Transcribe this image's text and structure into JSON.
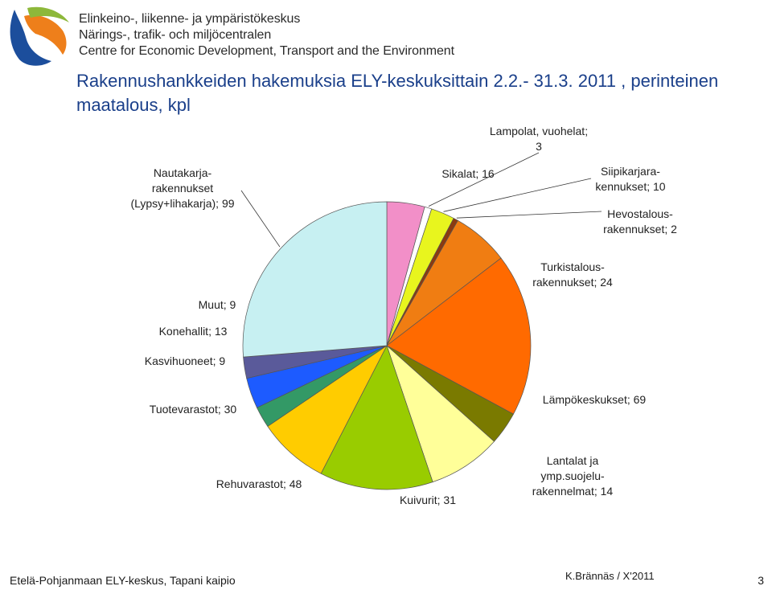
{
  "header": {
    "org_lines": [
      "Elinkeino-, liikenne- ja ympäristökeskus",
      "Närings-, trafik- och miljöcentralen",
      "Centre for Economic Development, Transport and the Environment"
    ],
    "logo_colors": {
      "blue": "#1c4e9c",
      "orange": "#ee7f1b",
      "green": "#8db83a"
    }
  },
  "title": {
    "line1": "Rakennushankkeiden hakemuksia ELY-keskuksittain  2.2.- 31.3. 2011 , perinteinen",
    "line2": "maatalous, kpl"
  },
  "chart_data": {
    "type": "pie",
    "start_angle_deg": 0,
    "slices": [
      {
        "label": "Sikalat",
        "value": 16,
        "label_lines": [
          "Sikalat; 16"
        ],
        "color": "#f28fc8"
      },
      {
        "label": "Lampolat, vuohelat",
        "value": 3,
        "label_lines": [
          "Lampolat, vuohelat;",
          "3"
        ],
        "color": "#ffffff"
      },
      {
        "label": "Siipikarjarakennukset",
        "value": 10,
        "label_lines": [
          "Siipikarjara-",
          "kennukset; 10"
        ],
        "color": "#e8f51e"
      },
      {
        "label": "Hevostalousrakennukset",
        "value": 2,
        "label_lines": [
          "Hevostalous-",
          "rakennukset; 2"
        ],
        "color": "#8b3a10"
      },
      {
        "label": "Turkistalousrakennukset",
        "value": 24,
        "label_lines": [
          "Turkistalous-",
          "rakennukset; 24"
        ],
        "color": "#f07d12"
      },
      {
        "label": "Lämpökeskukset",
        "value": 69,
        "label_lines": [
          "Lämpökeskukset; 69"
        ],
        "color": "#ff6a00"
      },
      {
        "label": "Lantalat ja ymp.suojelurakennelmat",
        "value": 14,
        "label_lines": [
          "Lantalat ja",
          "ymp.suojelu-",
          "rakennelmat; 14"
        ],
        "color": "#7a7a00"
      },
      {
        "label": "Kuivurit",
        "value": 31,
        "label_lines": [
          "Kuivurit; 31"
        ],
        "color": "#ffff99"
      },
      {
        "label": "Rehuvarastot",
        "value": 48,
        "label_lines": [
          "Rehuvarastot; 48"
        ],
        "color": "#99cc00"
      },
      {
        "label": "Tuotevarastot",
        "value": 30,
        "label_lines": [
          "Tuotevarastot; 30"
        ],
        "color": "#ffcc00"
      },
      {
        "label": "Kasvihuoneet",
        "value": 9,
        "label_lines": [
          "Kasvihuoneet; 9"
        ],
        "color": "#339966"
      },
      {
        "label": "Konehallit",
        "value": 13,
        "label_lines": [
          "Konehallit; 13"
        ],
        "color": "#1d5bff"
      },
      {
        "label": "Muut",
        "value": 9,
        "label_lines": [
          "Muut; 9"
        ],
        "color": "#5a5a9a"
      },
      {
        "label": "Nautakarjarakennukset (Lypsy+lihakarja)",
        "value": 99,
        "label_lines": [
          "Nautakarja-",
          "rakennukset",
          "(Lypsy+lihakarja); 99"
        ],
        "color": "#c7f0f2"
      }
    ]
  },
  "footer": {
    "left": "Etelä-Pohjanmaan ELY-keskus, Tapani kaipio",
    "middle": "K.Brännäs / X'2011",
    "page": "3"
  }
}
